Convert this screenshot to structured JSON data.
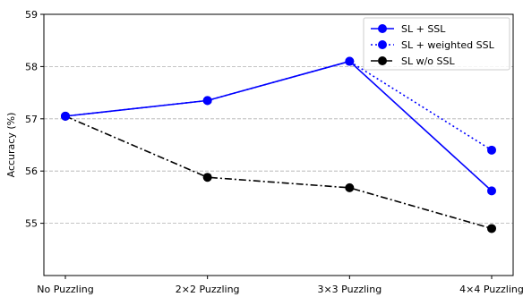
{
  "chart_data": {
    "type": "line",
    "title": "",
    "xlabel": "",
    "ylabel": "Accuracy (%)",
    "categories": [
      "No Puzzling",
      "2×2 Puzzling",
      "3×3 Puzzling",
      "4×4 Puzzling"
    ],
    "ylim": [
      54,
      59
    ],
    "yticks": [
      55,
      56,
      57,
      58,
      59
    ],
    "grid": "horizontal dashed",
    "legend_position": "top-right",
    "series": [
      {
        "name": "SL + SSL",
        "values": [
          57.05,
          57.35,
          58.1,
          55.62
        ],
        "color": "#0000ff",
        "linestyle": "solid",
        "marker": "circle"
      },
      {
        "name": "SL + weighted SSL",
        "values": [
          57.05,
          57.35,
          58.1,
          56.4
        ],
        "color": "#0000ff",
        "linestyle": "dotted",
        "marker": "circle"
      },
      {
        "name": "SL w/o SSL",
        "values": [
          57.05,
          55.88,
          55.68,
          54.9
        ],
        "color": "#000000",
        "linestyle": "dashdot",
        "marker": "circle"
      }
    ]
  }
}
